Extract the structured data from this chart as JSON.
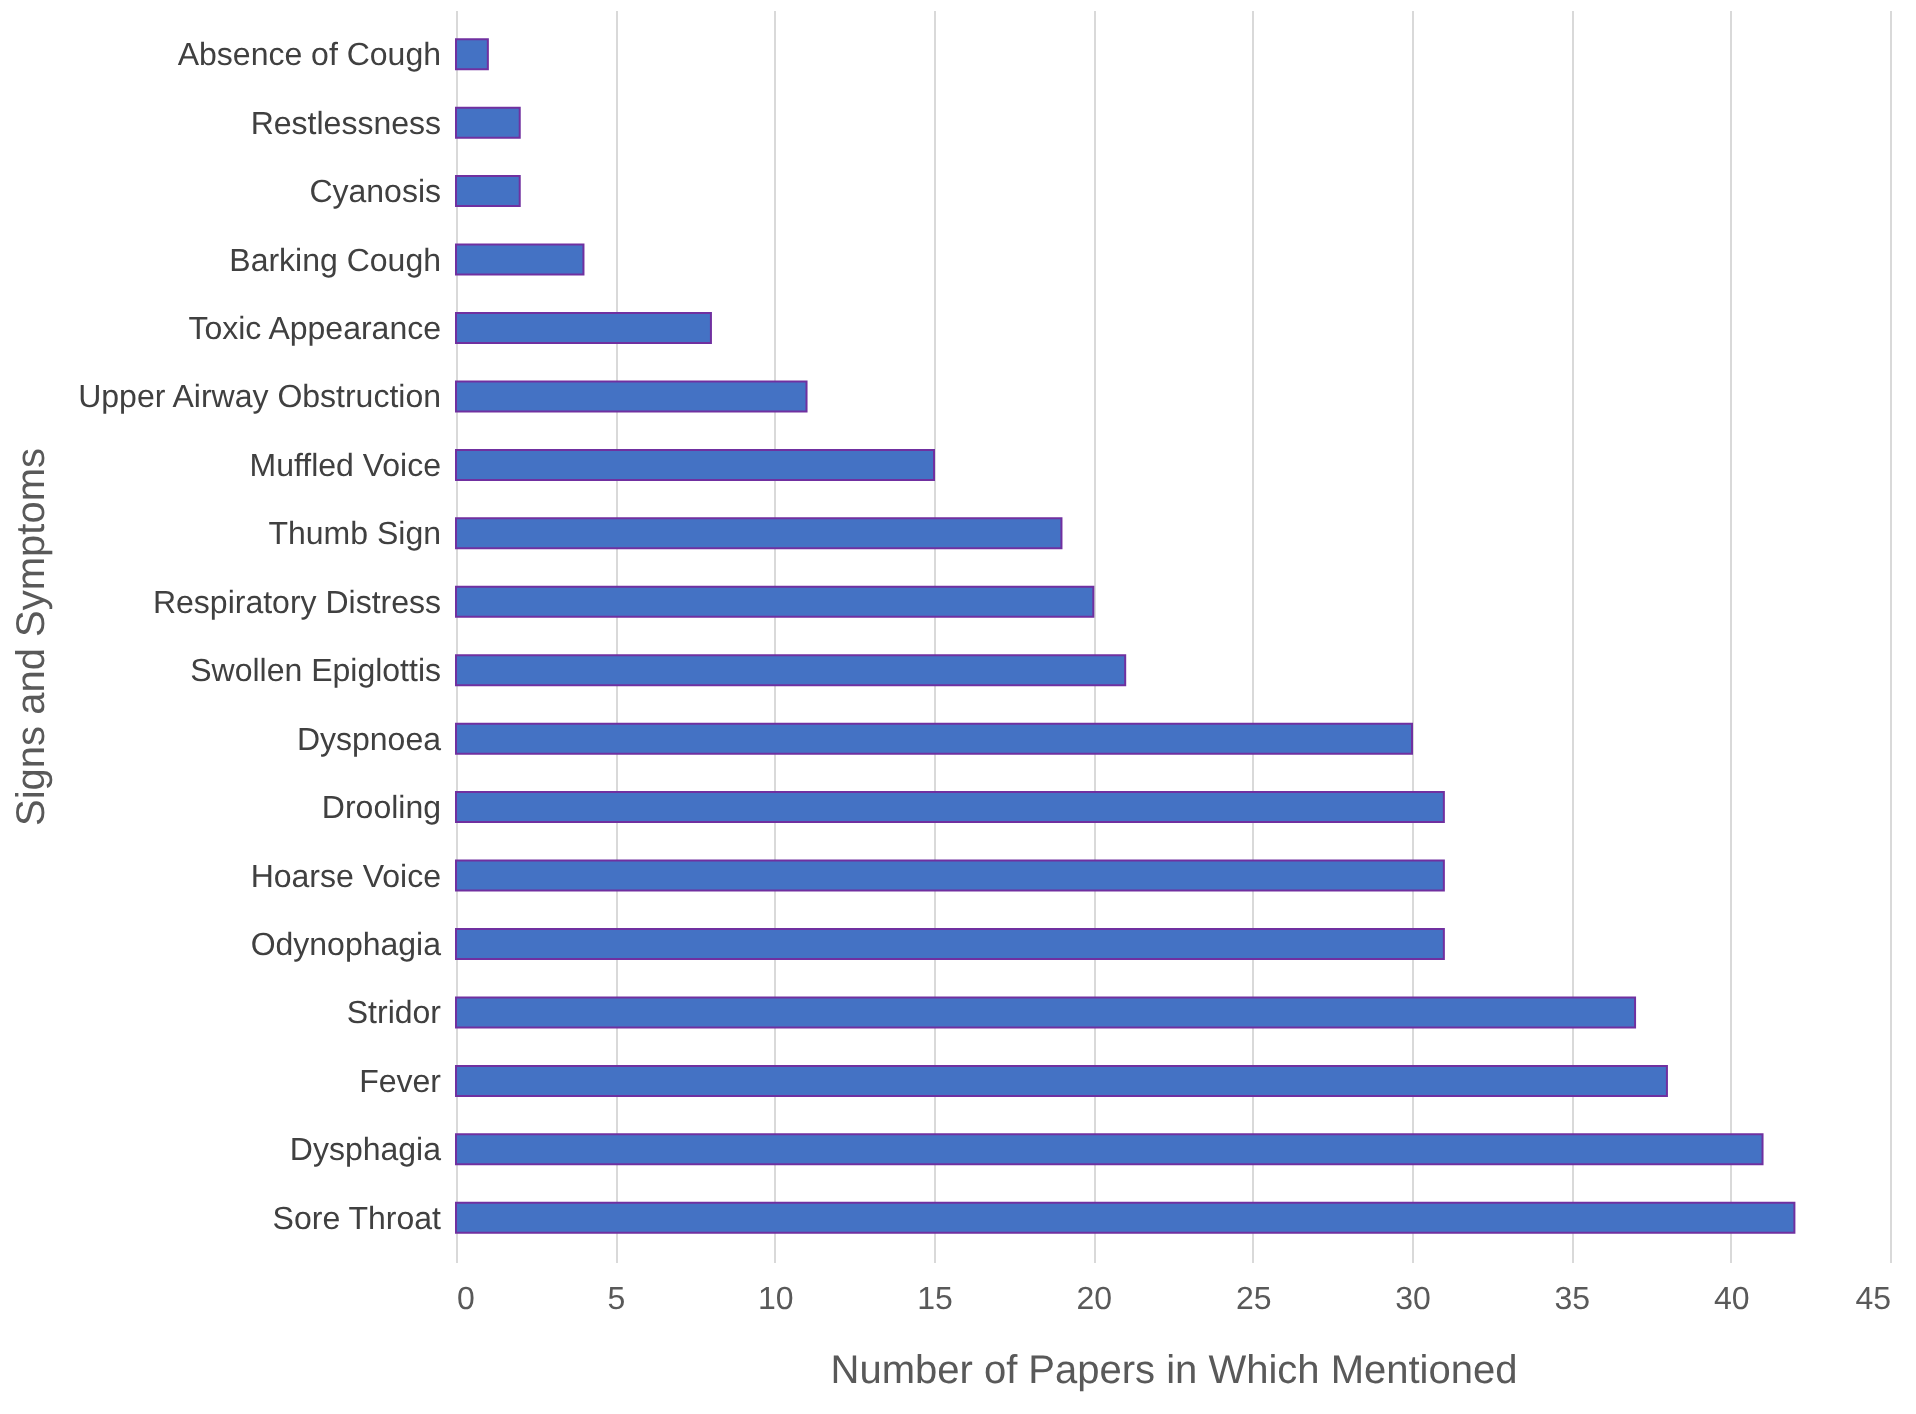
{
  "chart_data": {
    "type": "bar",
    "orientation": "horizontal",
    "xlabel": "Number of Papers in Which Mentioned",
    "ylabel": "Signs and Symptoms",
    "categories": [
      "Absence of Cough",
      "Restlessness",
      "Cyanosis",
      "Barking Cough",
      "Toxic Appearance",
      "Upper Airway Obstruction",
      "Muffled Voice",
      "Thumb Sign",
      "Respiratory Distress",
      "Swollen Epiglottis",
      "Dyspnoea",
      "Drooling",
      "Hoarse Voice",
      "Odynophagia",
      "Stridor",
      "Fever",
      "Dysphagia",
      "Sore Throat"
    ],
    "values": [
      1,
      2,
      2,
      4,
      8,
      11,
      15,
      19,
      20,
      21,
      30,
      31,
      31,
      31,
      37,
      38,
      41,
      42
    ],
    "color": "#4472c4",
    "xlim": [
      0,
      45
    ],
    "xticks": [
      0,
      5,
      10,
      15,
      20,
      25,
      30,
      35,
      40,
      45
    ],
    "grid": "x"
  }
}
